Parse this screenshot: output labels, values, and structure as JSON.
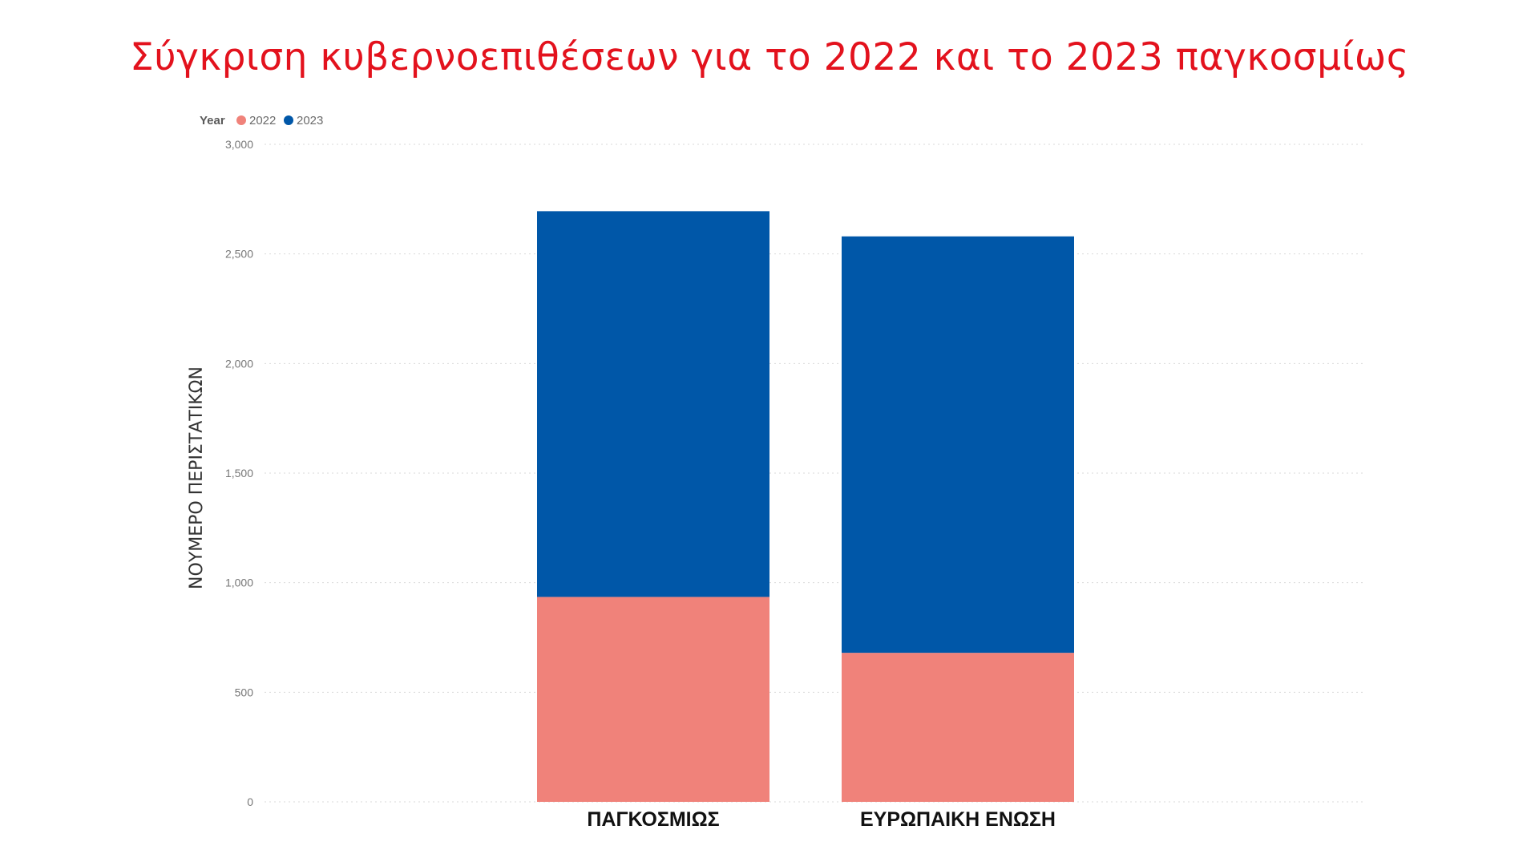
{
  "chart_data": {
    "type": "bar",
    "stacked": true,
    "title": "Σύγκριση κυβερνοεπιθέσεων για το 2022 και το 2023 παγκοσμίως",
    "xlabel": "",
    "ylabel": "ΝΟΥΜΕΡΟ ΠΕΡΙΣΤΑΤΙΚΩΝ",
    "categories": [
      "ΠΑΓΚΟΣΜΙΩΣ",
      "ΕΥΡΩΠΑΙΚΗ ΕΝΩΣΗ"
    ],
    "series": [
      {
        "name": "2022",
        "color": "#f0827a",
        "values": [
          935,
          680
        ]
      },
      {
        "name": "2023",
        "color": "#0057a8",
        "values": [
          1760,
          1900
        ]
      }
    ],
    "ylim": [
      0,
      3000
    ],
    "yticks": [
      0,
      500,
      1000,
      1500,
      2000,
      2500,
      3000
    ],
    "ytick_labels": [
      "0",
      "500",
      "1,000",
      "1,500",
      "2,000",
      "2,500",
      "3,000"
    ],
    "grid": true,
    "legend": {
      "title": "Year",
      "placement": "top-left"
    }
  }
}
